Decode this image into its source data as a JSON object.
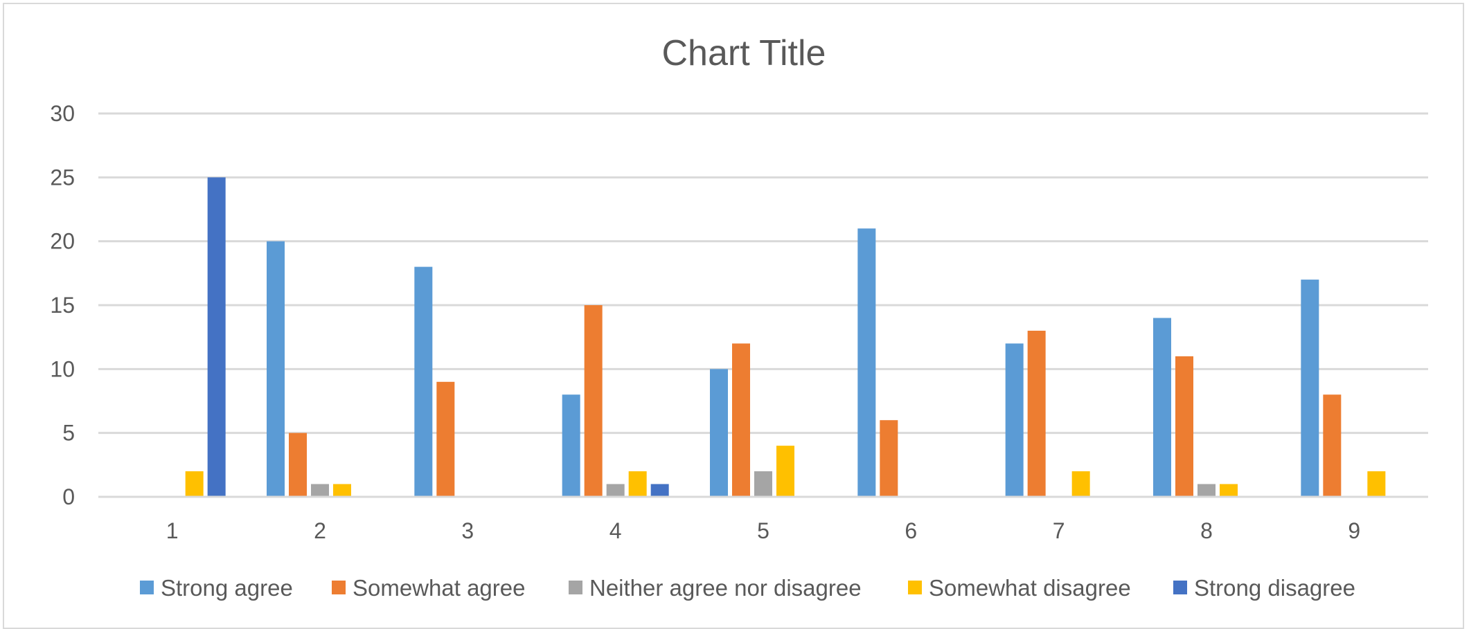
{
  "chart_data": {
    "type": "bar",
    "title": "Chart Title",
    "xlabel": "",
    "ylabel": "",
    "categories": [
      "1",
      "2",
      "3",
      "4",
      "5",
      "6",
      "7",
      "8",
      "9"
    ],
    "ylim": [
      0,
      30
    ],
    "y_ticks": [
      "0",
      "5",
      "10",
      "15",
      "20",
      "25",
      "30"
    ],
    "grid": true,
    "legend_position": "bottom",
    "series": [
      {
        "name": "Strong agree",
        "color": "#5B9BD5",
        "values": [
          0,
          20,
          18,
          8,
          10,
          21,
          12,
          14,
          17
        ]
      },
      {
        "name": "Somewhat agree",
        "color": "#ED7D31",
        "values": [
          0,
          5,
          9,
          15,
          12,
          6,
          13,
          11,
          8
        ]
      },
      {
        "name": "Neither agree nor disagree",
        "color": "#A5A5A5",
        "values": [
          0,
          1,
          0,
          1,
          2,
          0,
          0,
          1,
          0
        ]
      },
      {
        "name": "Somewhat disagree",
        "color": "#FFC000",
        "values": [
          2,
          1,
          0,
          2,
          4,
          0,
          2,
          1,
          2
        ]
      },
      {
        "name": "Strong disagree",
        "color": "#4472C4",
        "values": [
          25,
          0,
          0,
          1,
          0,
          0,
          0,
          0,
          0
        ]
      }
    ]
  }
}
